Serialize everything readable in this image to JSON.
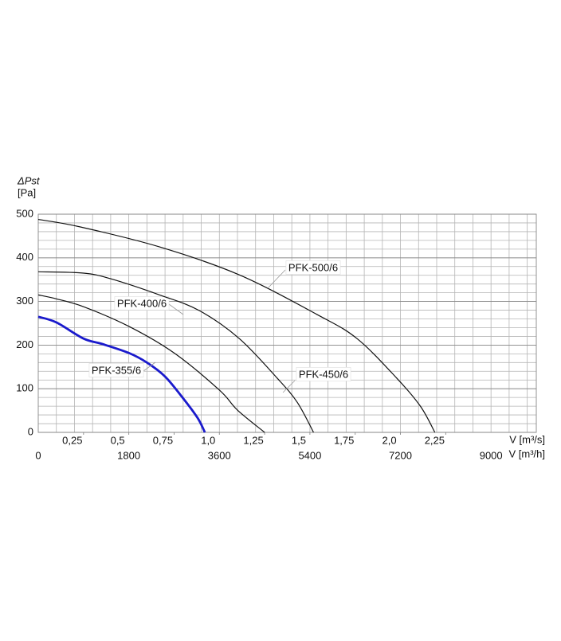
{
  "chart_data": {
    "type": "line",
    "y_label": "ΔPst",
    "y_unit": "[Pa]",
    "x_label": "V [m³/s]",
    "x2_label": "V [m³/h]",
    "xlim": [
      0,
      2.75
    ],
    "ylim": [
      0,
      500
    ],
    "x2lim": [
      0,
      9900
    ],
    "xticks": [
      {
        "value": 0.25,
        "label": "0,25"
      },
      {
        "value": 0.5,
        "label": "0,5"
      },
      {
        "value": 0.75,
        "label": "0,75"
      },
      {
        "value": 1.0,
        "label": "1,0"
      },
      {
        "value": 1.25,
        "label": "1,25"
      },
      {
        "value": 1.5,
        "label": "1,5"
      },
      {
        "value": 1.75,
        "label": "1,75"
      },
      {
        "value": 2.0,
        "label": "2,0"
      },
      {
        "value": 2.25,
        "label": "2,25"
      }
    ],
    "x2ticks": [
      0,
      1800,
      3600,
      5400,
      7200,
      9000
    ],
    "yticks": [
      0,
      100,
      200,
      300,
      400,
      500
    ],
    "grid": true,
    "minor_grid": {
      "x": 0.1,
      "y": 20
    },
    "series": [
      {
        "name": "PFK-355/6",
        "color": "#1a1acc",
        "x": [
          0,
          0.1,
          0.25,
          0.35,
          0.5,
          0.6,
          0.7,
          0.8,
          0.88,
          0.92
        ],
        "values": [
          265,
          252,
          215,
          203,
          182,
          160,
          128,
          78,
          33,
          0
        ]
      },
      {
        "name": "PFK-400/6",
        "color": "#111111",
        "x": [
          0,
          0.1,
          0.25,
          0.5,
          0.75,
          1.0,
          1.1,
          1.25
        ],
        "values": [
          315,
          306,
          288,
          243,
          182,
          97,
          51,
          0
        ]
      },
      {
        "name": "PFK-450/6",
        "color": "#111111",
        "x": [
          0,
          0.25,
          0.4,
          0.67,
          0.89,
          1.11,
          1.32,
          1.43,
          1.52
        ],
        "values": [
          368,
          365,
          352,
          315,
          279,
          215,
          124,
          69,
          0
        ]
      },
      {
        "name": "PFK-500/6",
        "color": "#111111",
        "x": [
          0,
          0.23,
          0.67,
          1.11,
          1.54,
          1.76,
          1.98,
          2.11,
          2.19
        ],
        "values": [
          488,
          471,
          425,
          361,
          270,
          215,
          124,
          60,
          0
        ]
      }
    ]
  }
}
